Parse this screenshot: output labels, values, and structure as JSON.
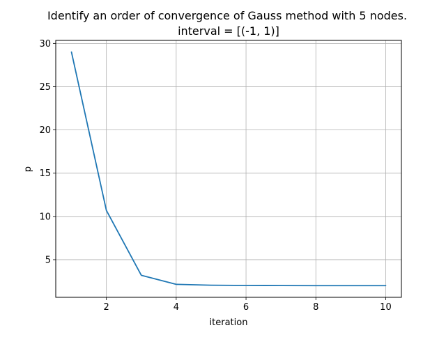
{
  "chart_data": {
    "type": "line",
    "title_line1": "Identify an order of convergence of Gauss method with 5 nodes.",
    "title_line2": "interval = [(-1, 1)]",
    "xlabel": "iteration",
    "ylabel": "p",
    "xlim": [
      0.55,
      10.45
    ],
    "ylim": [
      0.65,
      30.35
    ],
    "x_ticks": [
      2,
      4,
      6,
      8,
      10
    ],
    "y_ticks": [
      5,
      10,
      15,
      20,
      25,
      30
    ],
    "grid": true,
    "series": [
      {
        "color": "#1f77b4",
        "x": [
          1,
          2,
          3,
          4,
          5,
          6,
          7,
          8,
          9,
          10
        ],
        "y": [
          29.0,
          10.7,
          3.2,
          2.15,
          2.05,
          2.02,
          2.01,
          2.0,
          2.0,
          2.0
        ]
      }
    ]
  }
}
